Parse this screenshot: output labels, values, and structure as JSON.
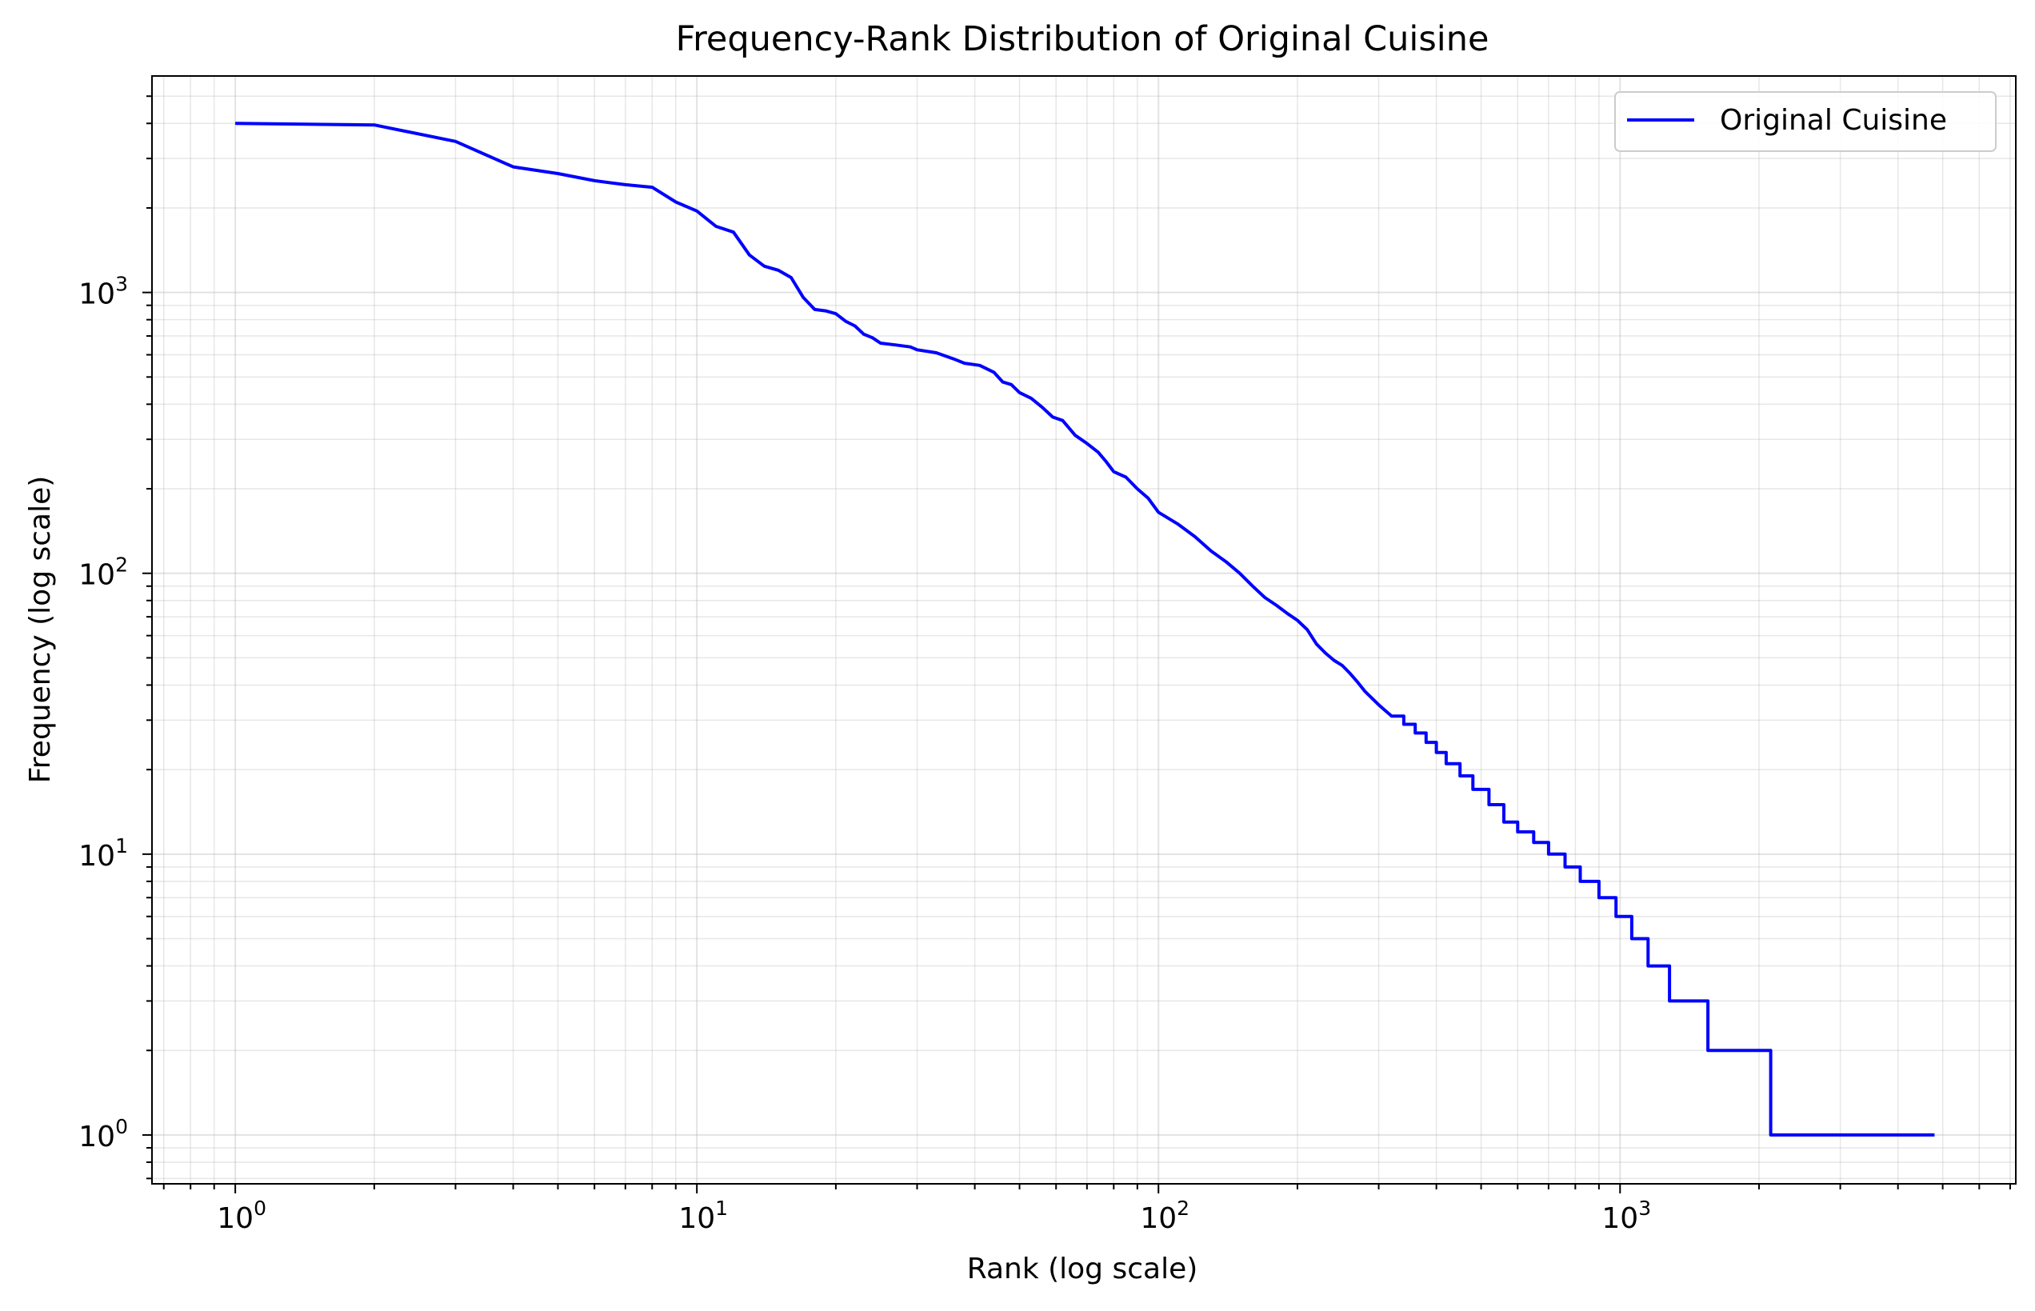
{
  "chart_data": {
    "type": "line",
    "title": "Frequency-Rank Distribution of Original Cuisine",
    "xlabel": "Rank (log scale)",
    "ylabel": "Frequency (log scale)",
    "xscale": "log",
    "yscale": "log",
    "xlim": [
      0.66,
      7200
    ],
    "ylim": [
      0.67,
      5900
    ],
    "grid": true,
    "grid_minor": true,
    "legend_position": "top-right",
    "x_ticks": [
      {
        "base": "10",
        "exp": "0",
        "value": 1
      },
      {
        "base": "10",
        "exp": "1",
        "value": 10
      },
      {
        "base": "10",
        "exp": "2",
        "value": 100
      },
      {
        "base": "10",
        "exp": "3",
        "value": 1000
      }
    ],
    "y_ticks": [
      {
        "base": "10",
        "exp": "0",
        "value": 1
      },
      {
        "base": "10",
        "exp": "1",
        "value": 10
      },
      {
        "base": "10",
        "exp": "2",
        "value": 100
      },
      {
        "base": "10",
        "exp": "3",
        "value": 1000
      }
    ],
    "series": [
      {
        "name": "Original Cuisine",
        "color": "#0000ff",
        "points": [
          [
            1,
            4000
          ],
          [
            2,
            3950
          ],
          [
            3,
            3450
          ],
          [
            4,
            2800
          ],
          [
            5,
            2650
          ],
          [
            6,
            2500
          ],
          [
            7,
            2420
          ],
          [
            8,
            2370
          ],
          [
            9,
            2100
          ],
          [
            10,
            1950
          ],
          [
            11,
            1720
          ],
          [
            12,
            1640
          ],
          [
            13,
            1360
          ],
          [
            14,
            1240
          ],
          [
            15,
            1200
          ],
          [
            16,
            1130
          ],
          [
            17,
            960
          ],
          [
            18,
            870
          ],
          [
            19,
            860
          ],
          [
            20,
            840
          ],
          [
            21,
            790
          ],
          [
            22,
            760
          ],
          [
            23,
            710
          ],
          [
            24,
            690
          ],
          [
            25,
            660
          ],
          [
            27,
            650
          ],
          [
            29,
            640
          ],
          [
            30,
            625
          ],
          [
            33,
            610
          ],
          [
            36,
            580
          ],
          [
            38,
            560
          ],
          [
            41,
            550
          ],
          [
            44,
            520
          ],
          [
            46,
            480
          ],
          [
            48,
            470
          ],
          [
            50,
            440
          ],
          [
            53,
            420
          ],
          [
            56,
            390
          ],
          [
            59,
            360
          ],
          [
            62,
            350
          ],
          [
            66,
            310
          ],
          [
            70,
            290
          ],
          [
            74,
            270
          ],
          [
            77,
            250
          ],
          [
            80,
            230
          ],
          [
            85,
            220
          ],
          [
            90,
            200
          ],
          [
            95,
            185
          ],
          [
            100,
            165
          ],
          [
            110,
            150
          ],
          [
            120,
            135
          ],
          [
            130,
            120
          ],
          [
            140,
            110
          ],
          [
            150,
            100
          ],
          [
            160,
            90
          ],
          [
            170,
            82
          ],
          [
            180,
            77
          ],
          [
            190,
            72
          ],
          [
            200,
            68
          ],
          [
            210,
            63
          ],
          [
            220,
            56
          ],
          [
            230,
            52
          ],
          [
            240,
            49
          ],
          [
            250,
            47
          ],
          [
            260,
            44
          ],
          [
            270,
            41
          ],
          [
            280,
            38
          ],
          [
            300,
            34
          ],
          [
            320,
            31
          ],
          [
            340,
            29
          ],
          [
            360,
            27
          ],
          [
            380,
            25
          ],
          [
            400,
            23
          ],
          [
            420,
            21
          ],
          [
            450,
            19
          ],
          [
            480,
            17
          ],
          [
            520,
            15
          ],
          [
            560,
            13
          ],
          [
            600,
            12
          ],
          [
            650,
            11
          ],
          [
            700,
            10
          ],
          [
            760,
            9
          ],
          [
            820,
            8
          ],
          [
            900,
            7
          ],
          [
            980,
            6
          ],
          [
            1060,
            5
          ],
          [
            1150,
            4
          ],
          [
            1280,
            3
          ],
          [
            1550,
            2
          ],
          [
            2100,
            2
          ],
          [
            2120,
            1
          ],
          [
            4800,
            1
          ]
        ],
        "step_from_rank": 320
      }
    ]
  }
}
